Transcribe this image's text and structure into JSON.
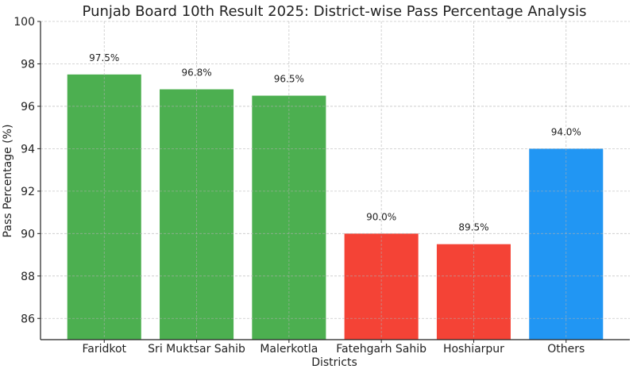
{
  "chart_data": {
    "type": "bar",
    "title": "Punjab Board 10th Result 2025: District-wise Pass Percentage Analysis",
    "xlabel": "Districts",
    "ylabel": "Pass Percentage (%)",
    "categories": [
      "Faridkot",
      "Sri Muktsar Sahib",
      "Malerkotla",
      "Fatehgarh Sahib",
      "Hoshiarpur",
      "Others"
    ],
    "values": [
      97.5,
      96.8,
      96.5,
      90.0,
      89.5,
      94.0
    ],
    "data_labels": [
      "97.5%",
      "96.8%",
      "96.5%",
      "90.0%",
      "89.5%",
      "94.0%"
    ],
    "colors": [
      "#4CAF50",
      "#4CAF50",
      "#4CAF50",
      "#F44336",
      "#F44336",
      "#2196F3"
    ],
    "ylim": [
      85,
      100
    ],
    "yticks": [
      86,
      88,
      90,
      92,
      94,
      96,
      98,
      100
    ],
    "grid": true
  }
}
